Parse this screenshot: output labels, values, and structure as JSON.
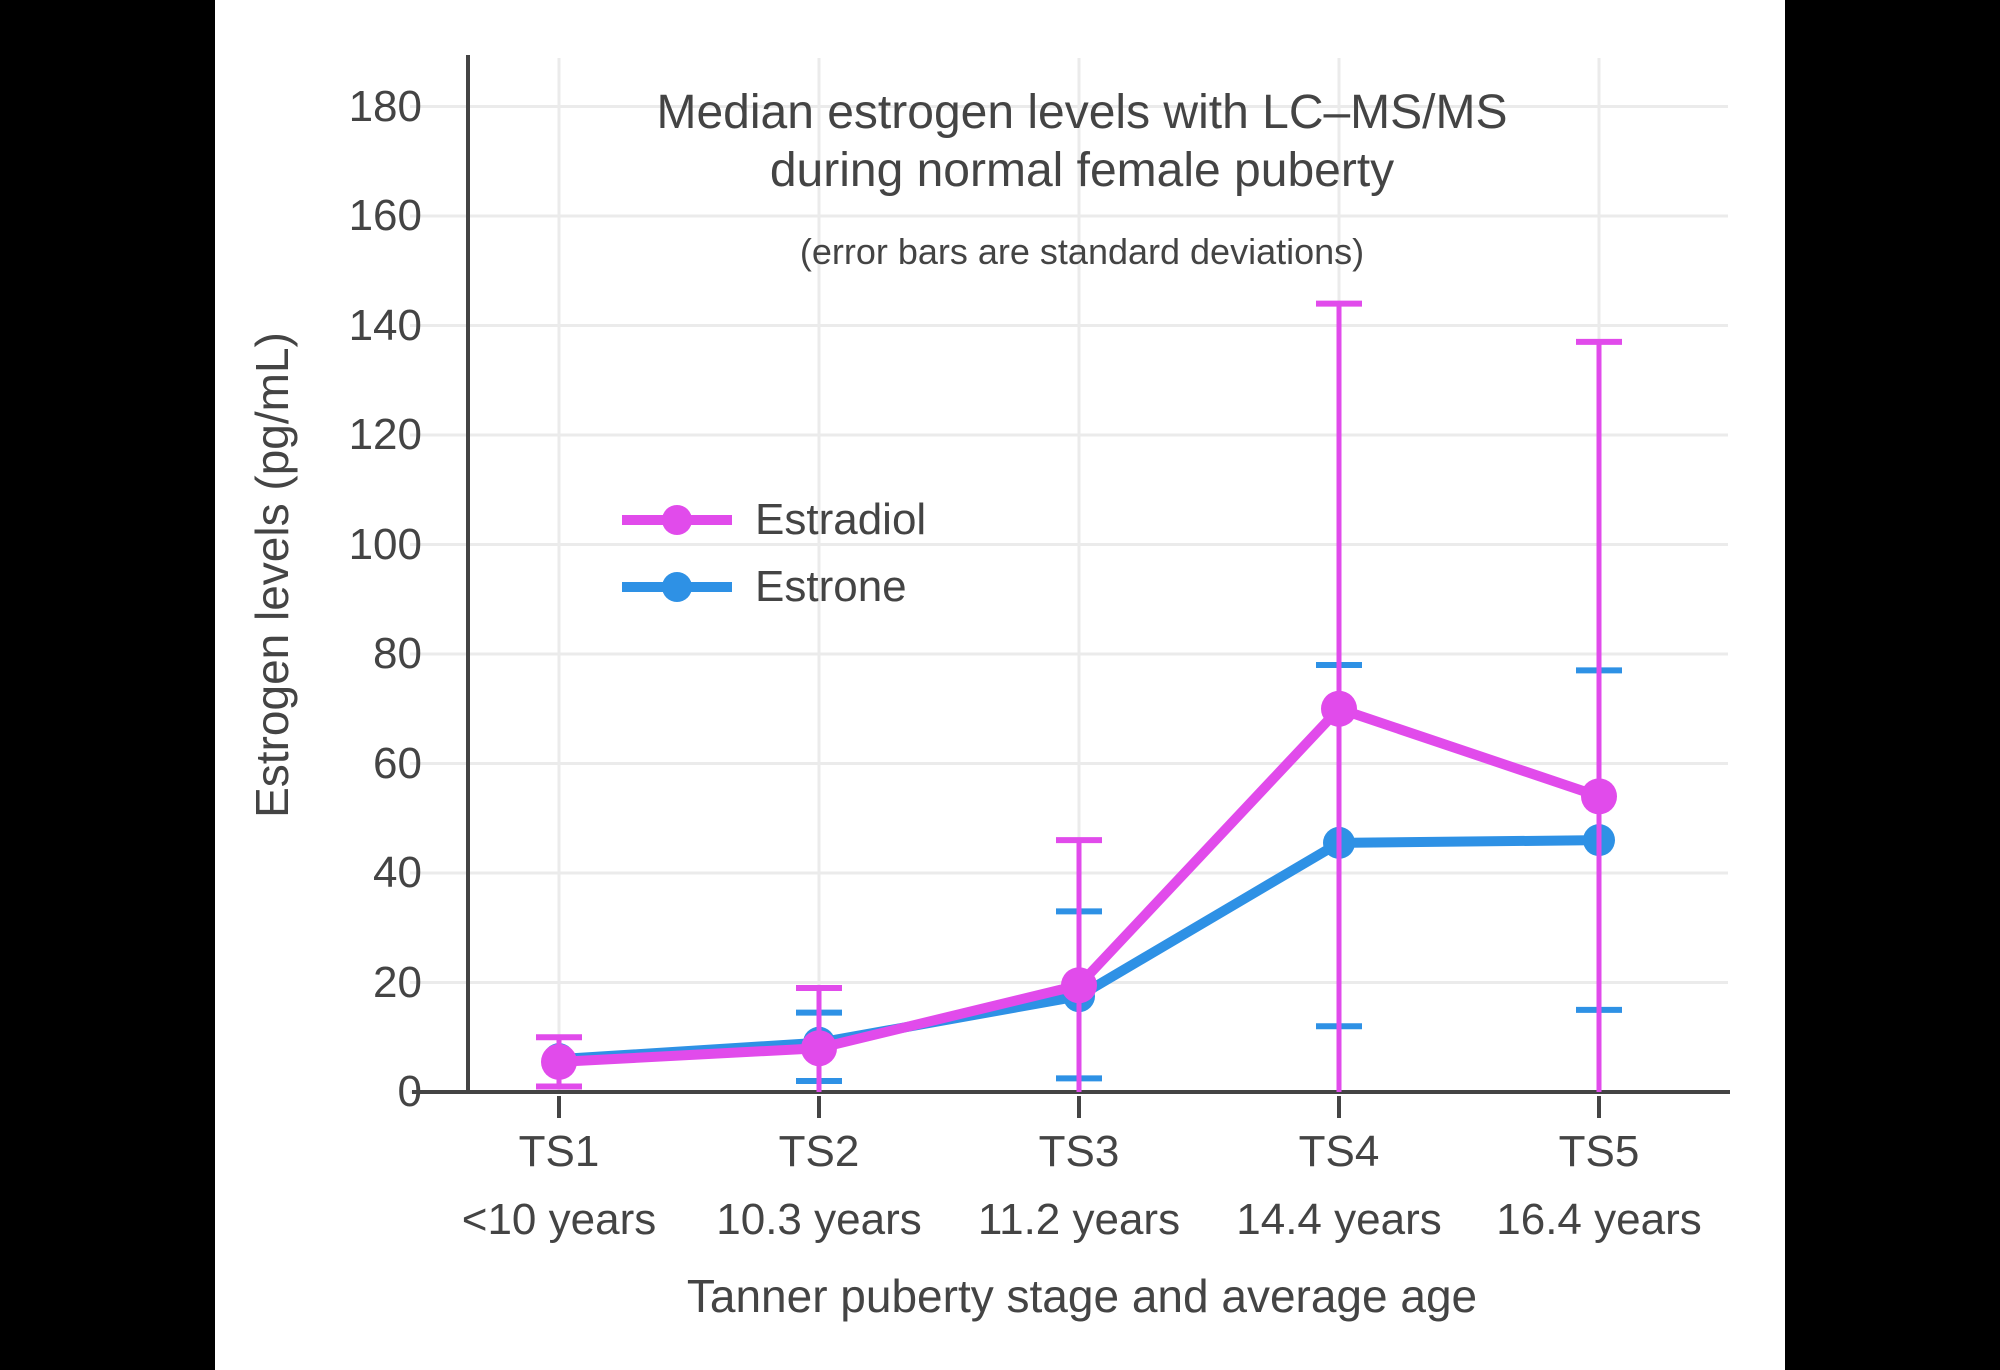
{
  "colors": {
    "background": "#000000",
    "panel": "#FFFFFF",
    "grid": "#EBEBEB",
    "axis": "#444444",
    "text": "#444444"
  },
  "chart_data": {
    "type": "line",
    "title_line1": "Median estrogen levels with LC–MS/MS",
    "title_line2": "during normal female puberty",
    "subtitle": "(error bars are standard deviations)",
    "xlabel": "Tanner puberty stage and average age",
    "ylabel": "Estrogen levels (pg/mL)",
    "categories": [
      "TS1",
      "TS2",
      "TS3",
      "TS4",
      "TS5"
    ],
    "category_sublabels": [
      "<10 years",
      "10.3 years",
      "11.2 years",
      "14.4 years",
      "16.4 years"
    ],
    "y_ticks": [
      0,
      20,
      40,
      60,
      80,
      100,
      120,
      140,
      160,
      180
    ],
    "ylim": [
      0,
      190
    ],
    "grid": true,
    "legend_position": "inside-left",
    "legend_order": [
      "Estradiol",
      "Estrone"
    ],
    "series": [
      {
        "name": "Estrone",
        "color": "#2E91E5",
        "values": [
          6,
          9,
          17.5,
          45.5,
          46
        ],
        "error_upper": [
          null,
          14.5,
          33,
          78,
          77
        ],
        "error_lower": [
          null,
          2,
          2.5,
          12,
          15
        ]
      },
      {
        "name": "Estradiol",
        "color": "#E14BEB",
        "values": [
          5.5,
          8,
          19.5,
          70,
          54
        ],
        "error_upper": [
          10,
          19,
          46,
          144,
          137
        ],
        "error_lower": [
          1,
          0,
          0,
          0,
          0
        ],
        "error_lower_cap_shown": [
          true,
          false,
          false,
          false,
          false
        ]
      }
    ]
  }
}
